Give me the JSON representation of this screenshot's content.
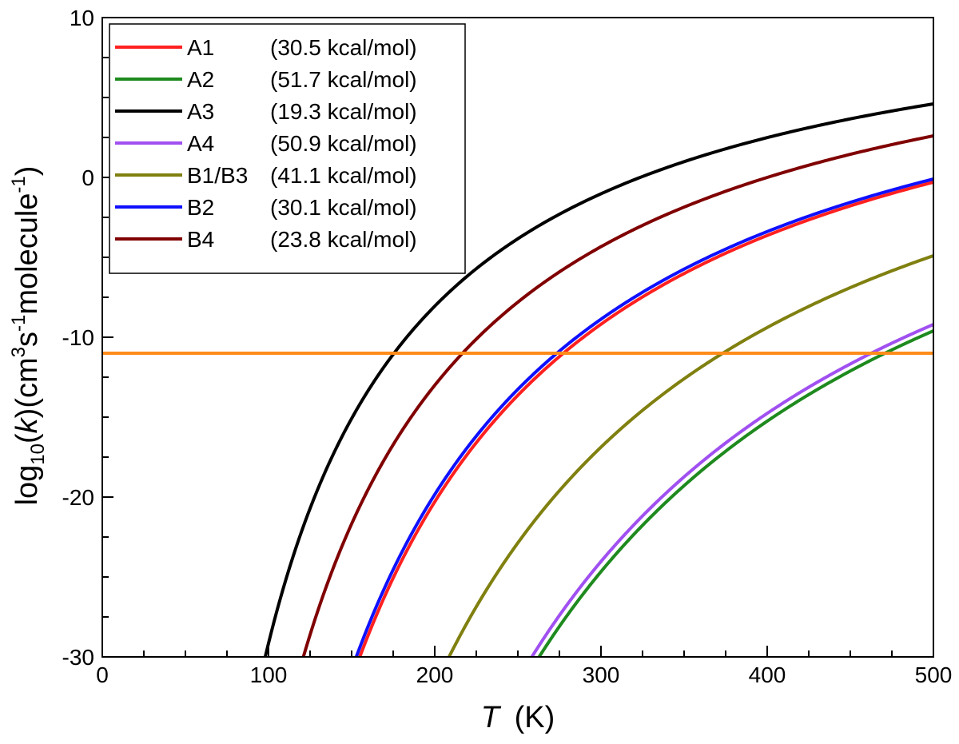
{
  "chart_data": {
    "type": "line",
    "title": "",
    "xlabel": {
      "symbol": "T",
      "unit": "(K)"
    },
    "ylabel": {
      "prefix": "log",
      "sub": "10",
      "open": "(",
      "k": "k",
      "mid": ")(cm",
      "exp3": "3",
      "s": "s",
      "expm1": "-1",
      "molecule": "molecule",
      "expm1b": "-1",
      "close": ")"
    },
    "xlim": [
      0,
      500
    ],
    "ylim": [
      -30,
      10
    ],
    "xticks": [
      0,
      100,
      200,
      300,
      400,
      500
    ],
    "yticks": [
      10,
      0,
      -10,
      -20,
      -30
    ],
    "legend_position": "top-left",
    "reference_line": {
      "y": -11,
      "color": "#FF8C1A"
    },
    "series": [
      {
        "name": "A1",
        "energy": "(30.5 kcal/mol)",
        "color": "#FF2020",
        "Ea": 30.5,
        "y500": -0.3
      },
      {
        "name": "A2",
        "energy": "(51.7 kcal/mol)",
        "color": "#1E8A1E",
        "Ea": 51.7,
        "y500": -9.6
      },
      {
        "name": "A3",
        "energy": "(19.3 kcal/mol)",
        "color": "#000000",
        "Ea": 19.3,
        "y500": 4.6
      },
      {
        "name": "A4",
        "energy": "(50.9 kcal/mol)",
        "color": "#A050F0",
        "Ea": 50.9,
        "y500": -9.2
      },
      {
        "name": "B1/B3",
        "energy": "(41.1 kcal/mol)",
        "color": "#808010",
        "Ea": 41.1,
        "y500": -4.9
      },
      {
        "name": "B2",
        "energy": "(30.1 kcal/mol)",
        "color": "#1010FF",
        "Ea": 30.1,
        "y500": -0.1
      },
      {
        "name": "B4",
        "energy": "(23.8 kcal/mol)",
        "color": "#800000",
        "Ea": 23.8,
        "y500": 2.6
      }
    ]
  }
}
